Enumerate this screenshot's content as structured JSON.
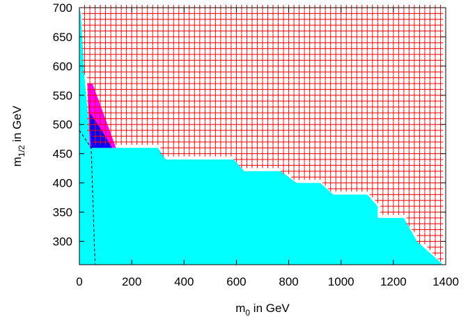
{
  "chart_data": {
    "type": "scatter",
    "xlabel": {
      "base": "m",
      "sub": "0",
      "rest": " in GeV"
    },
    "ylabel": {
      "base": "m",
      "sub": "1/2",
      "rest": " in GeV"
    },
    "xlim": [
      0,
      1400
    ],
    "ylim": [
      260,
      700
    ],
    "xticks": [
      "0",
      "200",
      "400",
      "600",
      "800",
      "1000",
      "1200",
      "1400"
    ],
    "yticks": [
      "300",
      "350",
      "400",
      "450",
      "500",
      "550",
      "600",
      "650",
      "700"
    ],
    "grid": false,
    "colors": {
      "excluded_region": "#00ffff",
      "allowed_points": "#ff0000",
      "magenta_region": "#ff00ff",
      "blue_region": "#0000ff",
      "dashed_line": "#000000"
    },
    "regions": {
      "excluded_region": [
        [
          0,
          700
        ],
        [
          0,
          260
        ],
        [
          1390,
          260
        ],
        [
          1280,
          340
        ],
        [
          1220,
          340
        ],
        [
          1140,
          380
        ],
        [
          1080,
          380
        ],
        [
          1000,
          400
        ],
        [
          940,
          400
        ],
        [
          880,
          420
        ],
        [
          820,
          420
        ],
        [
          760,
          440
        ],
        [
          700,
          440
        ],
        [
          640,
          460
        ],
        [
          580,
          460
        ],
        [
          520,
          460
        ],
        [
          460,
          460
        ],
        [
          400,
          460
        ],
        [
          360,
          460
        ],
        [
          300,
          460
        ],
        [
          260,
          460
        ],
        [
          245,
          460
        ],
        [
          215,
          460
        ],
        [
          160,
          460
        ],
        [
          130,
          460
        ],
        [
          45,
          460
        ],
        [
          30,
          530
        ],
        [
          20,
          580
        ],
        [
          5,
          690
        ]
      ],
      "excluded_region_steps": [
        [
          0,
          700
        ],
        [
          0,
          260
        ],
        [
          1390,
          260
        ],
        [
          1290,
          340
        ],
        [
          1240,
          340
        ],
        [
          1140,
          380
        ],
        [
          1100,
          380
        ],
        [
          970,
          400
        ],
        [
          920,
          400
        ],
        [
          830,
          420
        ],
        [
          770,
          420
        ],
        [
          630,
          440
        ],
        [
          590,
          440
        ],
        [
          540,
          440
        ],
        [
          360,
          440
        ],
        [
          330,
          440
        ],
        [
          290,
          460
        ],
        [
          40,
          460
        ],
        [
          30,
          540
        ],
        [
          10,
          690
        ]
      ],
      "magenta_region": [
        [
          30,
          570
        ],
        [
          50,
          570
        ],
        [
          140,
          460
        ],
        [
          40,
          460
        ]
      ],
      "blue_region": [
        [
          35,
          550
        ],
        [
          40,
          520
        ],
        [
          85,
          490
        ],
        [
          125,
          460
        ],
        [
          45,
          460
        ]
      ]
    },
    "dashed_line": [
      [
        0,
        490
      ],
      [
        45,
        460
      ],
      [
        60,
        260
      ]
    ],
    "allowed_points": {
      "marker": "+",
      "x_step": 20,
      "y_step": 10,
      "y_max": 700,
      "x_max": 1380,
      "excluded_boundary": [
        [
          0,
          700
        ],
        [
          5,
          690
        ],
        [
          20,
          580
        ],
        [
          30,
          530
        ],
        [
          45,
          460
        ],
        [
          300,
          460
        ],
        [
          330,
          440
        ],
        [
          590,
          440
        ],
        [
          630,
          420
        ],
        [
          770,
          420
        ],
        [
          830,
          400
        ],
        [
          920,
          400
        ],
        [
          970,
          380
        ],
        [
          1100,
          380
        ],
        [
          1140,
          360
        ],
        [
          1140,
          340
        ],
        [
          1240,
          340
        ],
        [
          1290,
          300
        ],
        [
          1390,
          260
        ]
      ]
    }
  }
}
